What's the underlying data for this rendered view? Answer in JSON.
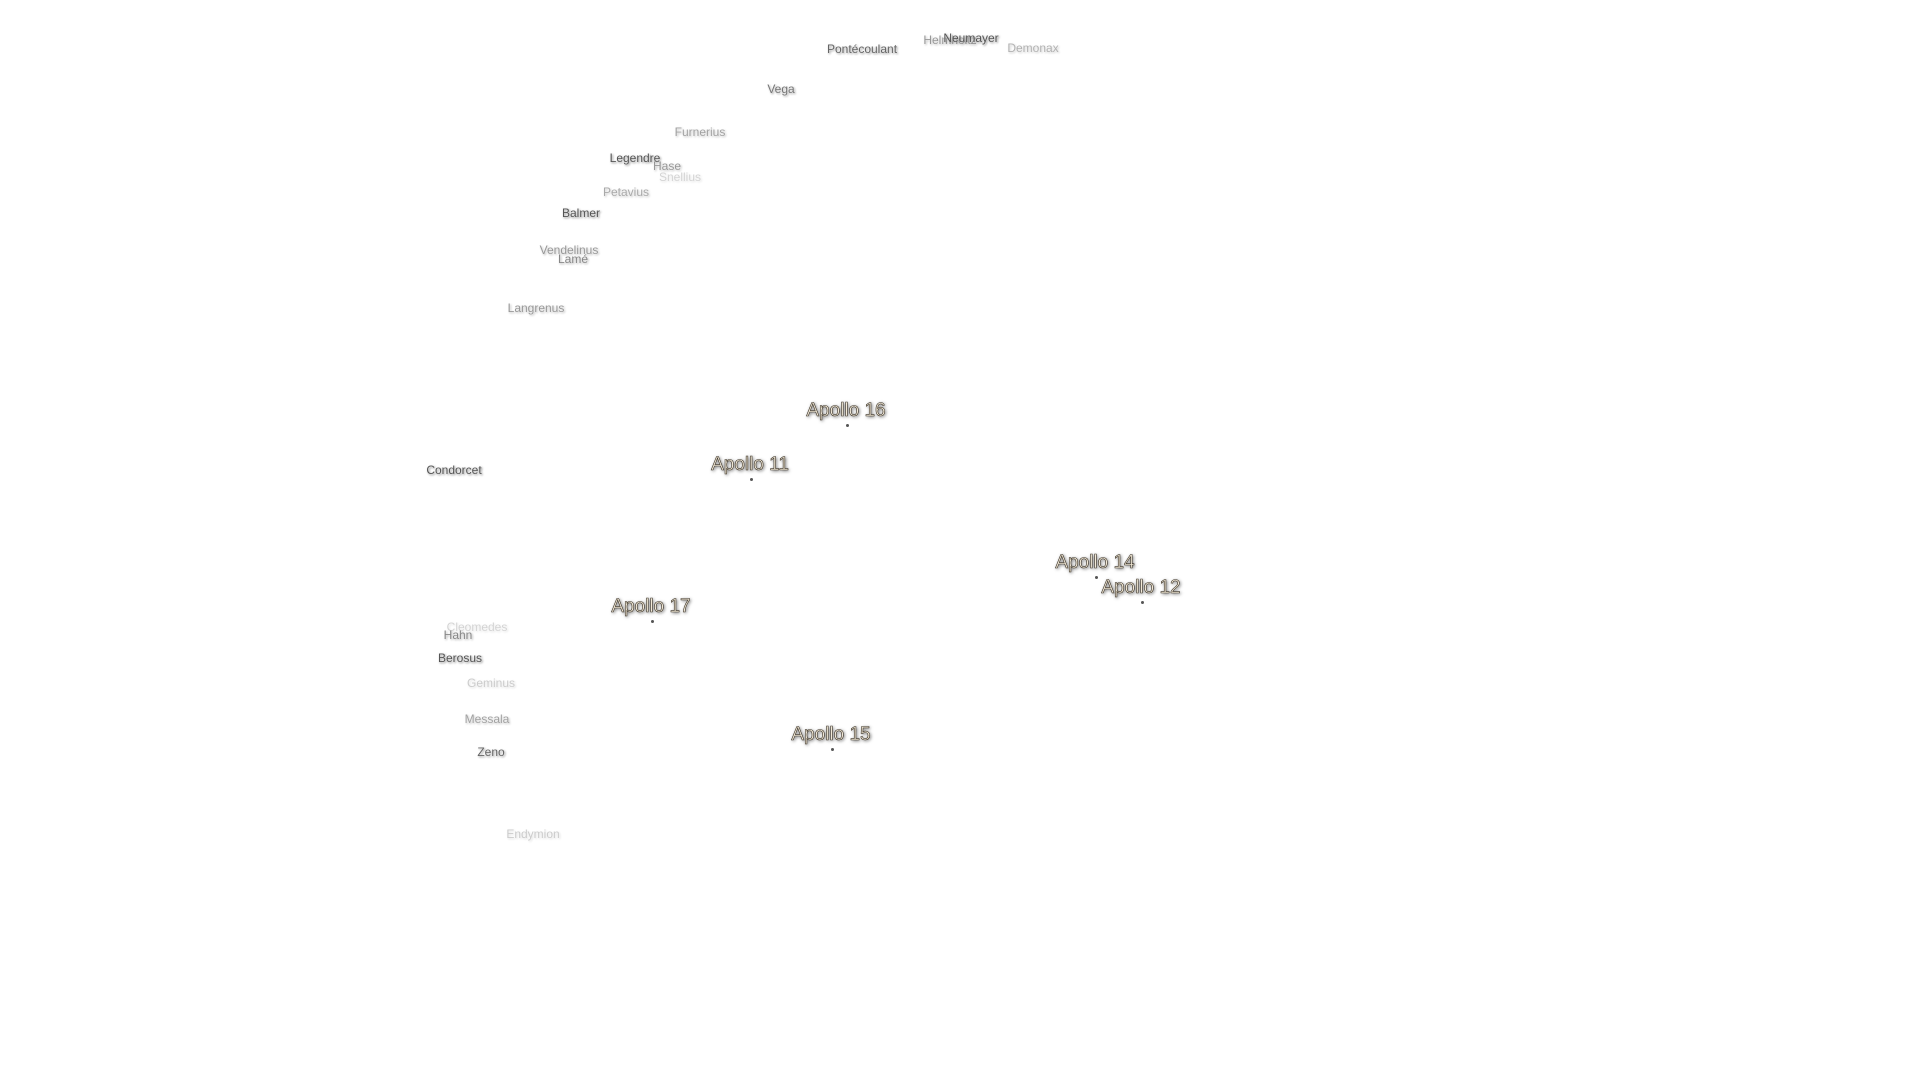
{
  "labels": [
    "Pontécoulant",
    "Helmholtz",
    "Neumayer",
    "Demonax",
    "Vega",
    "Furnerius",
    "Legendre",
    "Hase",
    "Snellius",
    "Petavius",
    "Balmer",
    "Vendelinus",
    "Lamé",
    "Langrenus",
    "Condorcet",
    "Cleomedes",
    "Hahn",
    "Berosus",
    "Geminus",
    "Messala",
    "Zeno",
    "Endymion"
  ],
  "landing_sites": [
    "Apollo 16",
    "Apollo 11",
    "Apollo 14",
    "Apollo 12",
    "Apollo 17",
    "Apollo 15"
  ]
}
